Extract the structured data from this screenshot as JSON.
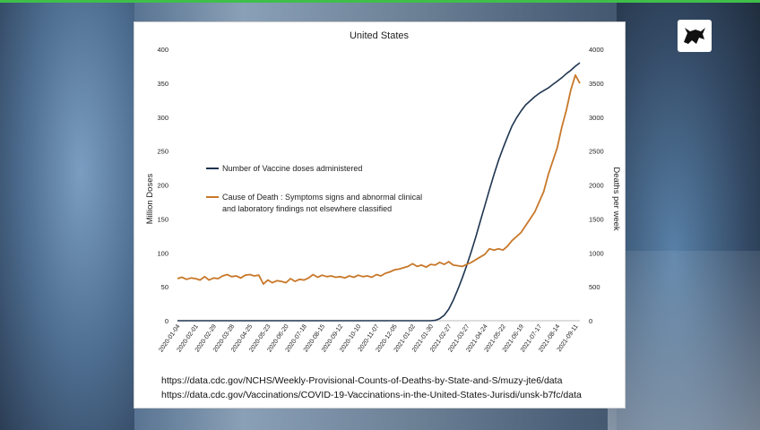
{
  "logo": {
    "icon": "bull-logo-icon"
  },
  "chart_data": {
    "type": "line",
    "title": "United States",
    "ylabel_left": "Million Doses",
    "ylabel_right": "Deaths per week",
    "ylim_left": [
      0,
      400
    ],
    "ylim_right": [
      0,
      4000
    ],
    "yticks_left": [
      "0",
      "50",
      "100",
      "150",
      "200",
      "250",
      "300",
      "350",
      "400"
    ],
    "yticks_right": [
      "0",
      "500",
      "1000",
      "1500",
      "2000",
      "2500",
      "3000",
      "3500",
      "4000"
    ],
    "xticks": [
      "2020-01-04",
      "2020-02-01",
      "2020-02-29",
      "2020-03-28",
      "2020-04-25",
      "2020-05-23",
      "2020-06-20",
      "2020-07-18",
      "2020-08-15",
      "2020-09-12",
      "2020-10-10",
      "2020-11-07",
      "2020-12-05",
      "2021-01-02",
      "2021-01-30",
      "2021-02-27",
      "2021-03-27",
      "2021-04-24",
      "2021-05-22",
      "2021-06-19",
      "2021-07-17",
      "2021-08-14",
      "2021-09-11"
    ],
    "grid": false,
    "legend": "center-left",
    "series": [
      {
        "name": "Number of Vaccine doses administered",
        "color": "#1f3550",
        "axis": "left",
        "points": [
          [
            0,
            0
          ],
          [
            56,
            0
          ],
          [
            57,
            0.5
          ],
          [
            58,
            3
          ],
          [
            59,
            8
          ],
          [
            60,
            17
          ],
          [
            61,
            30
          ],
          [
            62,
            46
          ],
          [
            63,
            63
          ],
          [
            64,
            82
          ],
          [
            65,
            102
          ],
          [
            66,
            124
          ],
          [
            67,
            147
          ],
          [
            68,
            170
          ],
          [
            69,
            193
          ],
          [
            70,
            215
          ],
          [
            71,
            236
          ],
          [
            72,
            254
          ],
          [
            73,
            271
          ],
          [
            74,
            287
          ],
          [
            75,
            299
          ],
          [
            76,
            309
          ],
          [
            77,
            318
          ],
          [
            78,
            324
          ],
          [
            79,
            330
          ],
          [
            80,
            335
          ],
          [
            81,
            339
          ],
          [
            82,
            343
          ],
          [
            83,
            348
          ],
          [
            84,
            353
          ],
          [
            85,
            358
          ],
          [
            86,
            364
          ],
          [
            87,
            369
          ],
          [
            88,
            375
          ],
          [
            89,
            380
          ]
        ]
      },
      {
        "name": "Cause of Death : Symptoms signs and abnormal clinical and laboratory findings not elsewhere classified",
        "color": "#c8782a",
        "axis": "right",
        "points": [
          [
            0,
            620
          ],
          [
            1,
            640
          ],
          [
            2,
            610
          ],
          [
            3,
            630
          ],
          [
            4,
            620
          ],
          [
            5,
            600
          ],
          [
            6,
            650
          ],
          [
            7,
            600
          ],
          [
            8,
            630
          ],
          [
            9,
            620
          ],
          [
            10,
            660
          ],
          [
            11,
            680
          ],
          [
            12,
            650
          ],
          [
            13,
            660
          ],
          [
            14,
            630
          ],
          [
            15,
            670
          ],
          [
            16,
            680
          ],
          [
            17,
            660
          ],
          [
            18,
            670
          ],
          [
            19,
            540
          ],
          [
            20,
            600
          ],
          [
            21,
            560
          ],
          [
            22,
            590
          ],
          [
            23,
            580
          ],
          [
            24,
            560
          ],
          [
            25,
            620
          ],
          [
            26,
            580
          ],
          [
            27,
            610
          ],
          [
            28,
            600
          ],
          [
            29,
            630
          ],
          [
            30,
            680
          ],
          [
            31,
            640
          ],
          [
            32,
            670
          ],
          [
            33,
            650
          ],
          [
            34,
            660
          ],
          [
            35,
            640
          ],
          [
            36,
            650
          ],
          [
            37,
            630
          ],
          [
            38,
            660
          ],
          [
            39,
            640
          ],
          [
            40,
            670
          ],
          [
            41,
            650
          ],
          [
            42,
            660
          ],
          [
            43,
            640
          ],
          [
            44,
            680
          ],
          [
            45,
            660
          ],
          [
            46,
            700
          ],
          [
            47,
            720
          ],
          [
            48,
            750
          ],
          [
            49,
            760
          ],
          [
            50,
            780
          ],
          [
            51,
            800
          ],
          [
            52,
            840
          ],
          [
            53,
            800
          ],
          [
            54,
            820
          ],
          [
            55,
            790
          ],
          [
            56,
            830
          ],
          [
            57,
            820
          ],
          [
            58,
            860
          ],
          [
            59,
            830
          ],
          [
            60,
            870
          ],
          [
            61,
            820
          ],
          [
            62,
            810
          ],
          [
            63,
            800
          ],
          [
            64,
            830
          ],
          [
            65,
            860
          ],
          [
            66,
            900
          ],
          [
            67,
            940
          ],
          [
            68,
            980
          ],
          [
            69,
            1060
          ],
          [
            70,
            1040
          ],
          [
            71,
            1060
          ],
          [
            72,
            1040
          ],
          [
            73,
            1100
          ],
          [
            74,
            1180
          ],
          [
            75,
            1240
          ],
          [
            76,
            1300
          ],
          [
            77,
            1400
          ],
          [
            78,
            1500
          ],
          [
            79,
            1600
          ],
          [
            80,
            1750
          ],
          [
            81,
            1900
          ],
          [
            82,
            2150
          ],
          [
            83,
            2350
          ],
          [
            84,
            2550
          ],
          [
            85,
            2850
          ],
          [
            86,
            3100
          ],
          [
            87,
            3400
          ],
          [
            88,
            3620
          ],
          [
            89,
            3500
          ]
        ]
      }
    ]
  },
  "sources": {
    "line1": "https://data.cdc.gov/NCHS/Weekly-Provisional-Counts-of-Deaths-by-State-and-S/muzy-jte6/data",
    "line2": "https://data.cdc.gov/Vaccinations/COVID-19-Vaccinations-in-the-United-States-Jurisdi/unsk-b7fc/data"
  }
}
